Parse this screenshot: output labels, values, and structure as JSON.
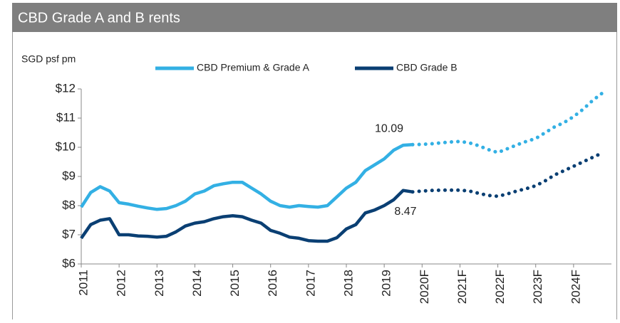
{
  "chart_data": {
    "type": "line",
    "title": "CBD Grade A and B rents",
    "y_label": "SGD psf pm",
    "x": [
      2011,
      2011.25,
      2011.5,
      2011.75,
      2012,
      2012.25,
      2012.5,
      2012.75,
      2013,
      2013.25,
      2013.5,
      2013.75,
      2014,
      2014.25,
      2014.5,
      2014.75,
      2015,
      2015.25,
      2015.5,
      2015.75,
      2016,
      2016.25,
      2016.5,
      2016.75,
      2017,
      2017.25,
      2017.5,
      2017.75,
      2018,
      2018.25,
      2018.5,
      2018.75,
      2019,
      2019.25,
      2019.5,
      2019.75,
      2020,
      2020.25,
      2020.5,
      2020.75,
      2021,
      2021.25,
      2021.5,
      2021.75,
      2022,
      2022.25,
      2022.5,
      2022.75,
      2023,
      2023.25,
      2023.5,
      2023.75,
      2024,
      2024.25,
      2024.5,
      2024.75
    ],
    "series": [
      {
        "name": "CBD Premium & Grade A",
        "color": "#33b0e4",
        "values": [
          7.95,
          8.45,
          8.65,
          8.5,
          8.1,
          8.05,
          7.98,
          7.92,
          7.87,
          7.9,
          8.0,
          8.15,
          8.4,
          8.5,
          8.68,
          8.75,
          8.8,
          8.8,
          8.6,
          8.4,
          8.15,
          8.0,
          7.95,
          8.0,
          7.97,
          7.95,
          8.0,
          8.3,
          8.6,
          8.8,
          9.2,
          9.4,
          9.6,
          9.9,
          10.07,
          10.09,
          null,
          null,
          null,
          null,
          null,
          null,
          null,
          null,
          null,
          null,
          null,
          null,
          null,
          null,
          null,
          null,
          null,
          null,
          null,
          null
        ],
        "forecast_values": [
          null,
          null,
          null,
          null,
          null,
          null,
          null,
          null,
          null,
          null,
          null,
          null,
          null,
          null,
          null,
          null,
          null,
          null,
          null,
          null,
          null,
          null,
          null,
          null,
          null,
          null,
          null,
          null,
          null,
          null,
          null,
          null,
          null,
          null,
          null,
          10.09,
          10.1,
          10.12,
          10.15,
          10.18,
          10.2,
          10.15,
          10.05,
          9.92,
          9.82,
          9.95,
          10.08,
          10.2,
          10.3,
          10.5,
          10.7,
          10.85,
          11.05,
          11.3,
          11.6,
          11.85
        ]
      },
      {
        "name": "CBD Grade B",
        "color": "#0a3f73",
        "values": [
          6.88,
          7.35,
          7.5,
          7.55,
          7.0,
          7.0,
          6.96,
          6.95,
          6.92,
          6.95,
          7.1,
          7.3,
          7.4,
          7.45,
          7.55,
          7.62,
          7.65,
          7.62,
          7.5,
          7.4,
          7.15,
          7.05,
          6.92,
          6.88,
          6.8,
          6.78,
          6.78,
          6.9,
          7.2,
          7.35,
          7.75,
          7.85,
          8.0,
          8.2,
          8.52,
          8.47,
          null,
          null,
          null,
          null,
          null,
          null,
          null,
          null,
          null,
          null,
          null,
          null,
          null,
          null,
          null,
          null,
          null,
          null,
          null,
          null
        ],
        "forecast_values": [
          null,
          null,
          null,
          null,
          null,
          null,
          null,
          null,
          null,
          null,
          null,
          null,
          null,
          null,
          null,
          null,
          null,
          null,
          null,
          null,
          null,
          null,
          null,
          null,
          null,
          null,
          null,
          null,
          null,
          null,
          null,
          null,
          null,
          null,
          null,
          8.47,
          8.5,
          8.52,
          8.53,
          8.53,
          8.53,
          8.5,
          8.42,
          8.35,
          8.32,
          8.4,
          8.5,
          8.58,
          8.68,
          8.85,
          9.05,
          9.2,
          9.35,
          9.5,
          9.65,
          9.8
        ]
      }
    ],
    "annotations": [
      {
        "text": "10.09"
      },
      {
        "text": "8.47"
      }
    ],
    "xlim": [
      2011,
      2025
    ],
    "xticks": [
      {
        "value": 2011,
        "label": "2011"
      },
      {
        "value": 2012,
        "label": "2012"
      },
      {
        "value": 2013,
        "label": "2013"
      },
      {
        "value": 2014,
        "label": "2014"
      },
      {
        "value": 2015,
        "label": "2015"
      },
      {
        "value": 2016,
        "label": "2016"
      },
      {
        "value": 2017,
        "label": "2017"
      },
      {
        "value": 2018,
        "label": "2018"
      },
      {
        "value": 2019,
        "label": "2019"
      },
      {
        "value": 2020,
        "label": "2020F"
      },
      {
        "value": 2021,
        "label": "2021F"
      },
      {
        "value": 2022,
        "label": "2022F"
      },
      {
        "value": 2023,
        "label": "2023F"
      },
      {
        "value": 2024,
        "label": "2024F"
      }
    ],
    "ylim": [
      6,
      12
    ],
    "yticks": [
      {
        "value": 6,
        "label": "$6"
      },
      {
        "value": 7,
        "label": "$7"
      },
      {
        "value": 8,
        "label": "$8"
      },
      {
        "value": 9,
        "label": "$9"
      },
      {
        "value": 10,
        "label": "$10"
      },
      {
        "value": 11,
        "label": "$11"
      },
      {
        "value": 12,
        "label": "$12"
      }
    ],
    "grid": false
  }
}
